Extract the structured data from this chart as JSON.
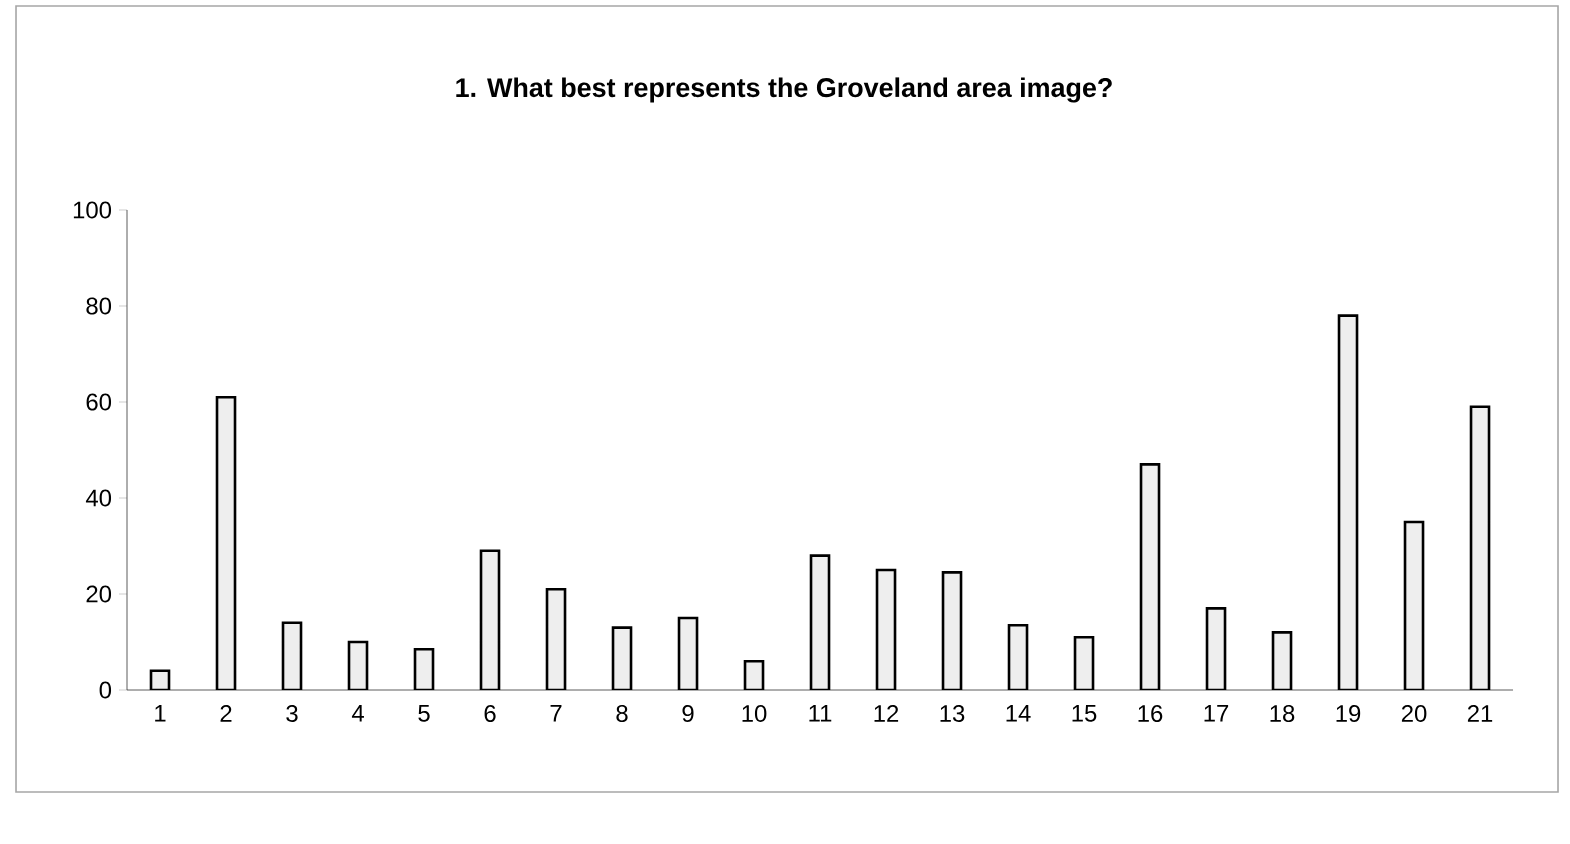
{
  "chart_data": {
    "type": "bar",
    "title": "1. What best represents the Groveland area image?",
    "categories": [
      "1",
      "2",
      "3",
      "4",
      "5",
      "6",
      "7",
      "8",
      "9",
      "10",
      "11",
      "12",
      "13",
      "14",
      "15",
      "16",
      "17",
      "18",
      "19",
      "20",
      "21"
    ],
    "values": [
      4,
      61,
      14,
      10,
      8.5,
      29,
      21,
      13,
      15,
      6,
      28,
      25,
      24.5,
      13.5,
      11,
      47,
      17,
      12,
      78,
      35,
      59
    ],
    "color": "#eeeeee",
    "ylim": [
      0,
      100
    ],
    "yticks": [
      0,
      20,
      40,
      60,
      80,
      100
    ]
  }
}
